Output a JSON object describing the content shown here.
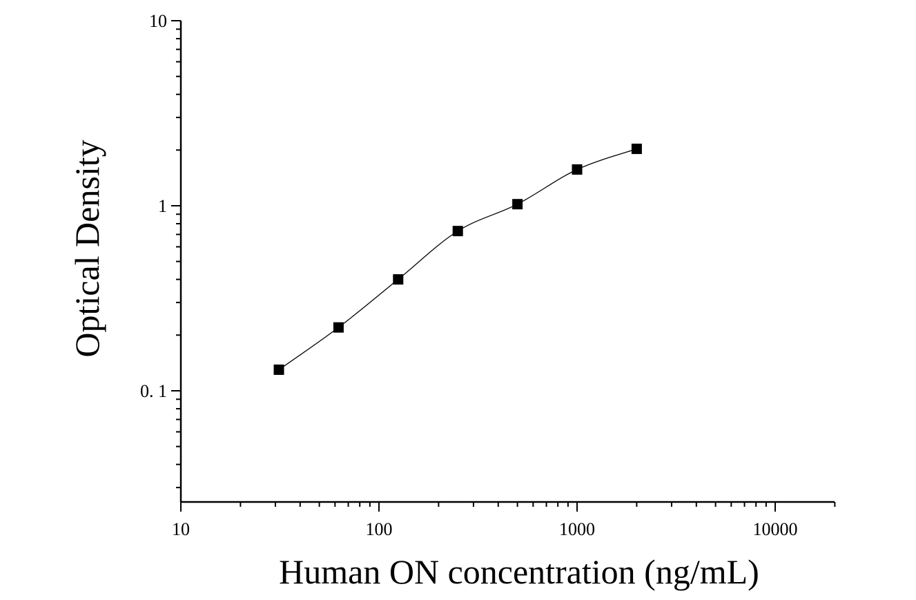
{
  "chart_data": {
    "type": "scatter",
    "xlabel": "Human ON concentration (ng/mL)",
    "ylabel": "Optical Density",
    "x_scale": "log",
    "y_scale": "log",
    "xlim": [
      10,
      20000
    ],
    "ylim": [
      0.025,
      10
    ],
    "x_tick_values": [
      10,
      100,
      1000,
      10000
    ],
    "x_tick_labels": [
      "10",
      "100",
      "1000",
      "10000"
    ],
    "y_tick_values": [
      0.1,
      1,
      10
    ],
    "y_tick_labels": [
      "0. 1",
      "1",
      "10"
    ],
    "grid": false,
    "legend": "none",
    "series": [
      {
        "marker": "square",
        "color": "#000000",
        "fit_line": true,
        "x": [
          31.25,
          62.5,
          125,
          250,
          500,
          1000,
          2000
        ],
        "y": [
          0.13,
          0.22,
          0.4,
          0.73,
          1.02,
          1.57,
          2.03
        ]
      }
    ]
  }
}
